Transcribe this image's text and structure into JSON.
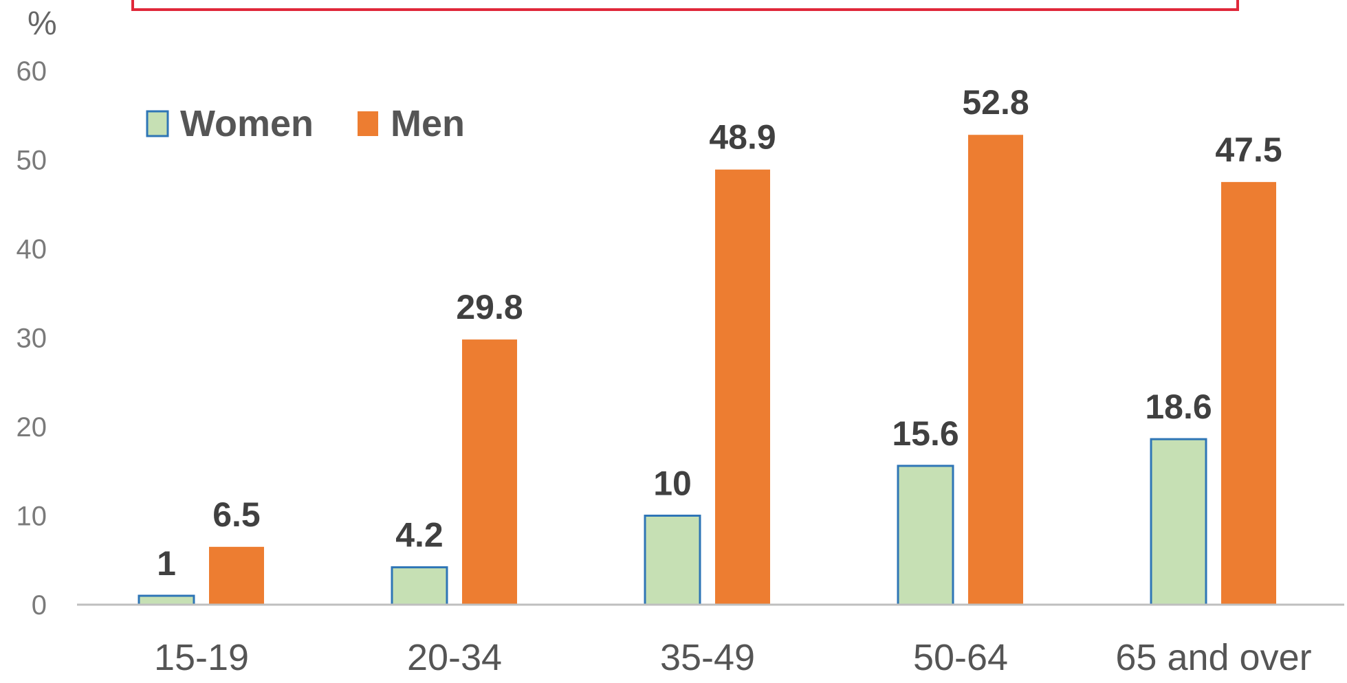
{
  "chart_data": {
    "type": "bar",
    "title": "",
    "xlabel": "",
    "ylabel": "%",
    "ylim": [
      0,
      60
    ],
    "yticks": [
      0,
      10,
      20,
      30,
      40,
      50,
      60
    ],
    "grid": false,
    "legend_position": "top-left",
    "categories": [
      "15-19",
      "20-34",
      "35-49",
      "50-64",
      "65 and over"
    ],
    "series": [
      {
        "name": "Women",
        "values": [
          1,
          4.2,
          10,
          15.6,
          18.6
        ],
        "labels": [
          "1",
          "4.2",
          "10",
          "15.6",
          "18.6"
        ],
        "fill": "#c6e0b4",
        "stroke": "#2e75b6"
      },
      {
        "name": "Men",
        "values": [
          6.5,
          29.8,
          48.9,
          52.8,
          47.5
        ],
        "labels": [
          "6.5",
          "29.8",
          "48.9",
          "52.8",
          "47.5"
        ],
        "fill": "#ed7d31",
        "stroke": "#ed7d31"
      }
    ],
    "colors": {
      "axis": "#bfbfbf",
      "frame": "#e0283a"
    }
  }
}
